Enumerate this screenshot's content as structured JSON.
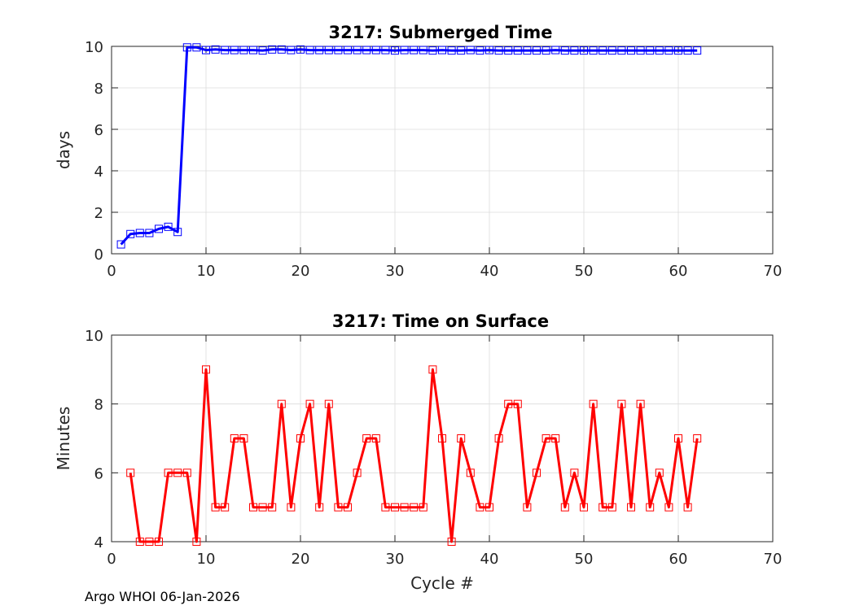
{
  "footer": "Argo WHOI 06-Jan-2026",
  "chart_data": [
    {
      "type": "line",
      "title": "3217: Submerged Time",
      "xlabel": "",
      "ylabel": "days",
      "xlim": [
        0,
        70
      ],
      "ylim": [
        0,
        10
      ],
      "xticks": [
        0,
        10,
        20,
        30,
        40,
        50,
        60,
        70
      ],
      "yticks": [
        0,
        2,
        4,
        6,
        8,
        10
      ],
      "grid": true,
      "color": "#0000ff",
      "marker": "square",
      "series": [
        {
          "x": [
            1,
            2,
            3,
            4,
            5,
            6,
            7,
            8,
            9,
            10,
            11,
            12,
            13,
            14,
            15,
            16,
            17,
            18,
            19,
            20,
            21,
            22,
            23,
            24,
            25,
            26,
            27,
            28,
            29,
            30,
            31,
            32,
            33,
            34,
            35,
            36,
            37,
            38,
            39,
            40,
            41,
            42,
            43,
            44,
            45,
            46,
            47,
            48,
            49,
            50,
            51,
            52,
            53,
            54,
            55,
            56,
            57,
            58,
            59,
            60,
            61,
            62
          ],
          "y": [
            0.45,
            0.95,
            1.0,
            1.0,
            1.2,
            1.3,
            1.05,
            9.95,
            9.95,
            9.82,
            9.85,
            9.82,
            9.82,
            9.82,
            9.82,
            9.8,
            9.85,
            9.85,
            9.82,
            9.85,
            9.82,
            9.82,
            9.82,
            9.82,
            9.82,
            9.82,
            9.82,
            9.82,
            9.82,
            9.8,
            9.82,
            9.82,
            9.82,
            9.8,
            9.82,
            9.8,
            9.8,
            9.82,
            9.8,
            9.82,
            9.8,
            9.8,
            9.8,
            9.8,
            9.8,
            9.8,
            9.82,
            9.8,
            9.8,
            9.8,
            9.8,
            9.8,
            9.8,
            9.8,
            9.8,
            9.8,
            9.8,
            9.8,
            9.8,
            9.8,
            9.8,
            9.8
          ]
        }
      ]
    },
    {
      "type": "line",
      "title": "3217: Time on Surface",
      "xlabel": "Cycle #",
      "ylabel": "Minutes",
      "xlim": [
        0,
        70
      ],
      "ylim": [
        4,
        10
      ],
      "xticks": [
        0,
        10,
        20,
        30,
        40,
        50,
        60,
        70
      ],
      "yticks": [
        4,
        6,
        8,
        10
      ],
      "grid": true,
      "color": "#ff0000",
      "marker": "square",
      "series": [
        {
          "x": [
            2,
            3,
            4,
            5,
            6,
            7,
            8,
            9,
            10,
            11,
            12,
            13,
            14,
            15,
            16,
            17,
            18,
            19,
            20,
            21,
            22,
            23,
            24,
            25,
            26,
            27,
            28,
            29,
            30,
            31,
            32,
            33,
            34,
            35,
            36,
            37,
            38,
            39,
            40,
            41,
            42,
            43,
            44,
            45,
            46,
            47,
            48,
            49,
            50,
            51,
            52,
            53,
            54,
            55,
            56,
            57,
            58,
            59,
            60,
            61,
            62
          ],
          "y": [
            6,
            4,
            4,
            4,
            6,
            6,
            6,
            4,
            9,
            5,
            5,
            7,
            7,
            5,
            5,
            5,
            8,
            5,
            7,
            8,
            5,
            8,
            5,
            5,
            6,
            7,
            7,
            5,
            5,
            5,
            5,
            5,
            9,
            7,
            4,
            7,
            6,
            5,
            5,
            7,
            8,
            8,
            5,
            6,
            7,
            7,
            5,
            6,
            5,
            8,
            5,
            5,
            8,
            5,
            8,
            5,
            6,
            5,
            7,
            5,
            7
          ]
        }
      ]
    }
  ]
}
